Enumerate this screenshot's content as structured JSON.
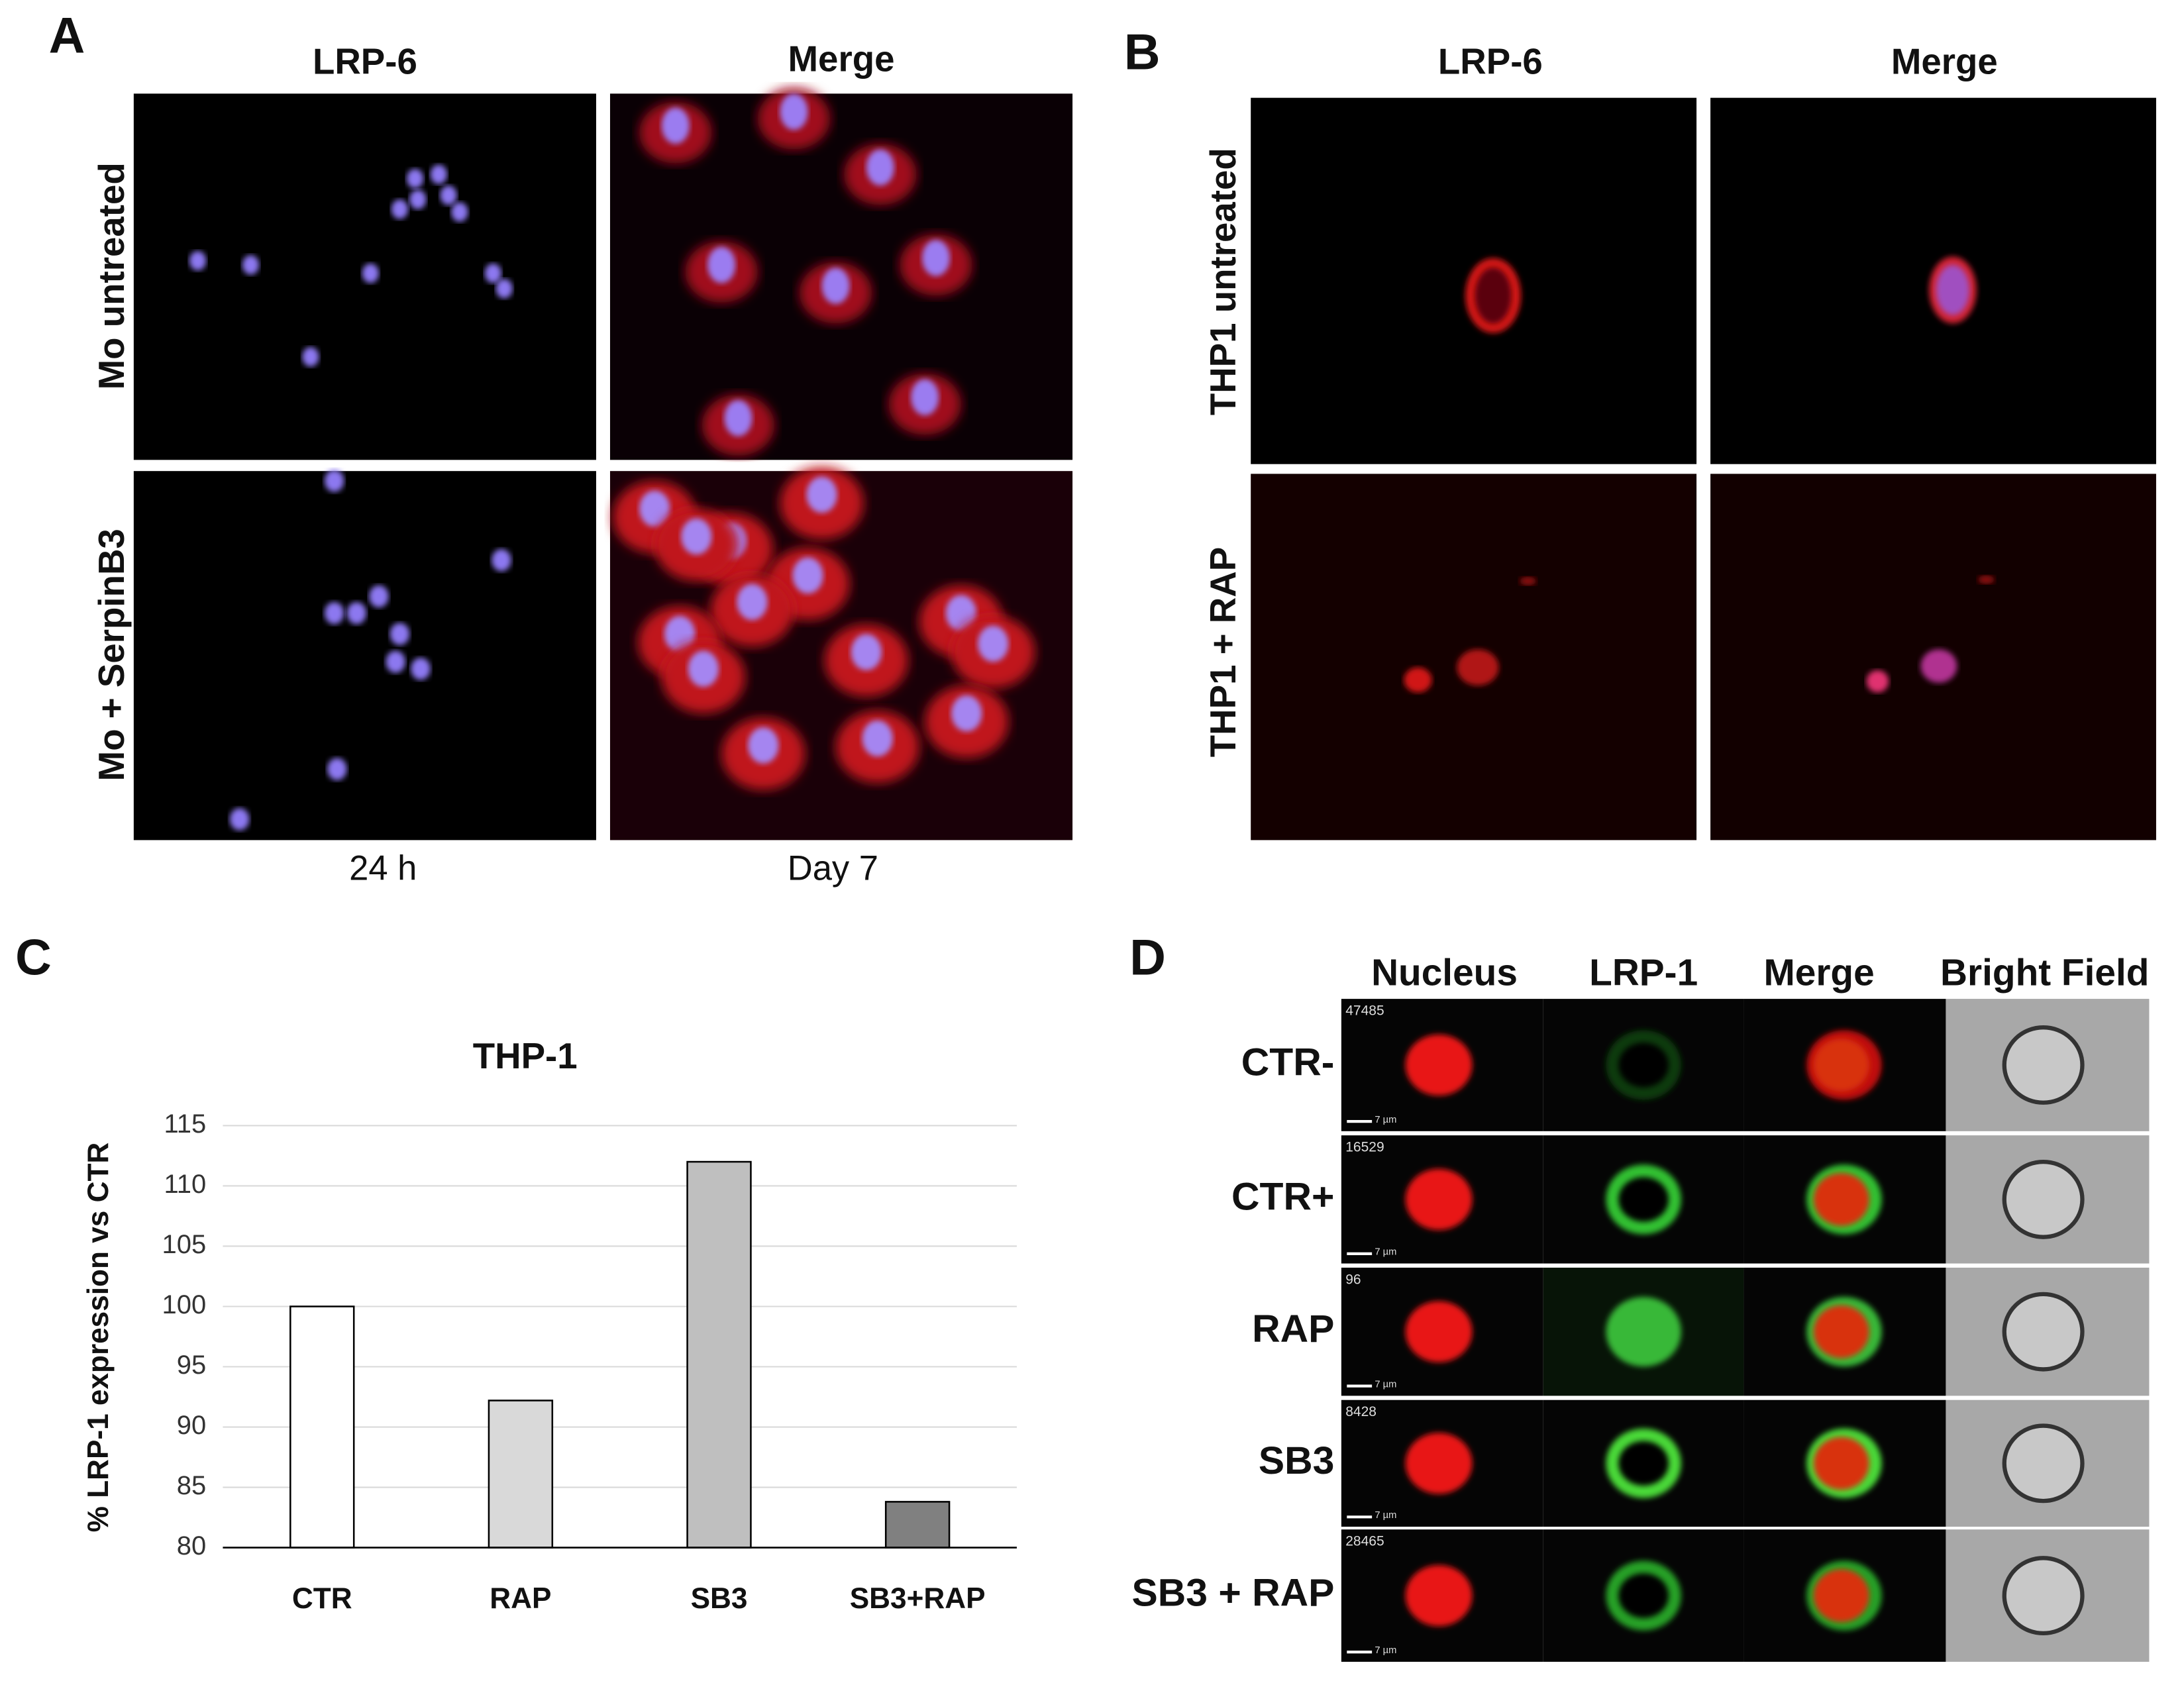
{
  "chart_data": {
    "type": "bar",
    "title": "THP-1",
    "y_label": "% LRP-1 expression vs CTR",
    "categories": [
      "CTR",
      "RAP",
      "SB3",
      "SB3+RAP"
    ],
    "values": [
      100,
      92.2,
      112,
      83.8
    ],
    "colors": [
      "#ffffff",
      "#d9d9d9",
      "#bfbfbf",
      "#808080"
    ],
    "ylim": [
      80,
      115
    ],
    "yticks": [
      80,
      85,
      90,
      95,
      100,
      105,
      110,
      115
    ],
    "grid": true
  },
  "panels": {
    "A": {
      "letter": "A",
      "columns": [
        "LRP-6",
        "Merge"
      ],
      "rows": [
        "Mo untreated",
        "Mo + SerpinB3"
      ],
      "footer": [
        "24 h",
        "Day 7"
      ]
    },
    "B": {
      "letter": "B",
      "columns": [
        "LRP-6",
        "Merge"
      ],
      "rows": [
        "THP1  untreated",
        "THP1 + RAP"
      ]
    },
    "C": {
      "letter": "C"
    },
    "D": {
      "letter": "D",
      "columns": [
        "Nucleus",
        "LRP-1",
        "Merge",
        "Bright Field"
      ],
      "rows": [
        "CTR-",
        "CTR+",
        "RAP",
        "SB3",
        "SB3 + RAP"
      ],
      "object_ids": [
        "47485",
        "16529",
        "96",
        "8428",
        "28465"
      ],
      "scale_label": "7 µm"
    }
  }
}
